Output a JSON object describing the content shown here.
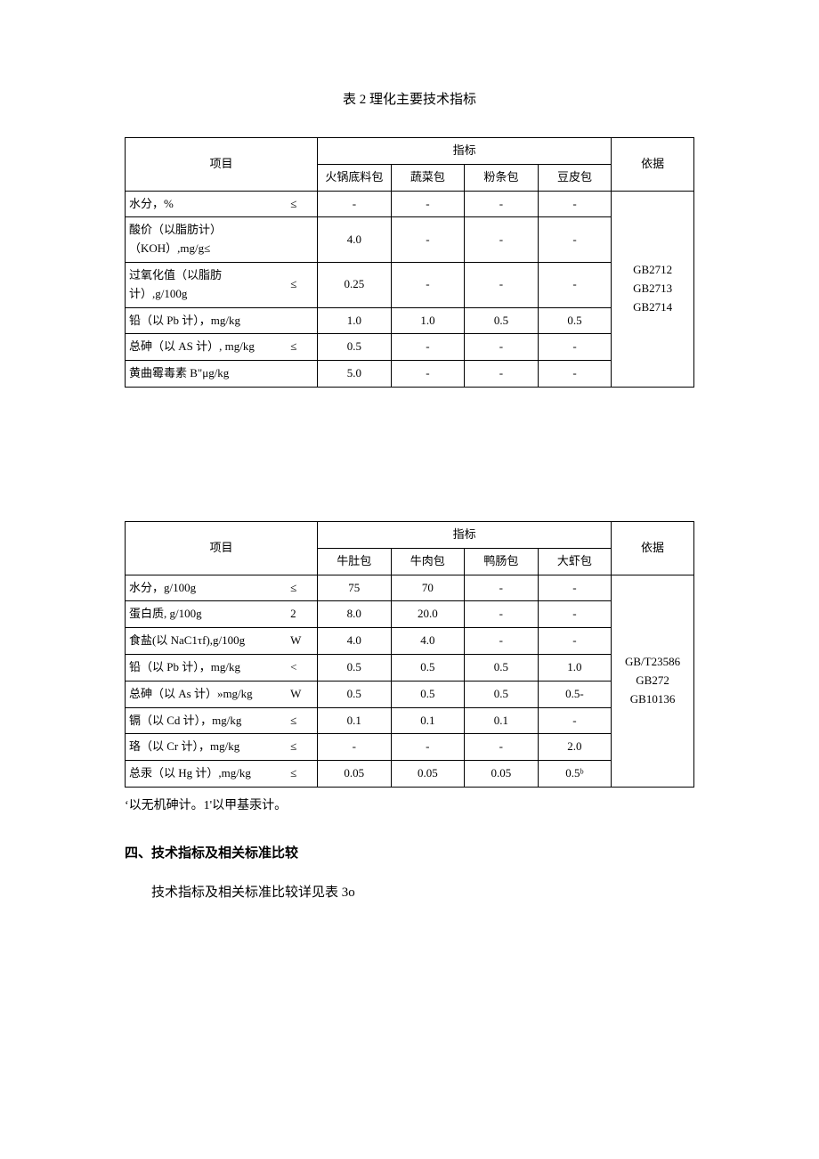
{
  "title": "表 2 理化主要技术指标",
  "table1": {
    "h_item": "项目",
    "h_index": "指标",
    "h_basis": "依据",
    "cols": [
      "火锅底料包",
      "蔬菜包",
      "粉条包",
      "豆皮包"
    ],
    "rows": [
      {
        "name": "水分，%",
        "op": "≤",
        "v": [
          "-",
          "-",
          "-",
          "-"
        ]
      },
      {
        "name": "酸价（以脂肪计）（KOH）,mg/g≤",
        "op": "",
        "v": [
          "4.0",
          "-",
          "-",
          "-"
        ]
      },
      {
        "name": "过氧化值（以脂肪计）,g/100g",
        "op": "≤",
        "v": [
          "0.25",
          "-",
          "-",
          "-"
        ]
      },
      {
        "name": "铅（以 Pb 计），mg/kg",
        "op": "",
        "v": [
          "1.0",
          "1.0",
          "0.5",
          "0.5"
        ]
      },
      {
        "name": "总砷（以 AS 计）, mg/kg",
        "op": "≤",
        "v": [
          "0.5",
          "-",
          "-",
          "-"
        ]
      },
      {
        "name": "黄曲霉毒素 B\"μg/kg",
        "op": "",
        "v": [
          "5.0",
          "-",
          "-",
          "-"
        ]
      }
    ],
    "basis": [
      "GB2712",
      "GB2713",
      "GB2714"
    ]
  },
  "table2": {
    "h_item": "项目",
    "h_index": "指标",
    "h_basis": "依据",
    "cols": [
      "牛肚包",
      "牛肉包",
      "鸭肠包",
      "大虾包"
    ],
    "rows": [
      {
        "name": "水分，g/100g",
        "op": "≤",
        "v": [
          "75",
          "70",
          "-",
          "-"
        ]
      },
      {
        "name": "蛋白质, g/100g",
        "op": "2",
        "v": [
          "8.0",
          "20.0",
          "-",
          "-"
        ]
      },
      {
        "name": "食盐(以 NaC1τf),g/100g",
        "op": "W",
        "v": [
          "4.0",
          "4.0",
          "-",
          "-"
        ]
      },
      {
        "name": "铅（以 Pb 计），mg/kg",
        "op": "<",
        "v": [
          "0.5",
          "0.5",
          "0.5",
          "1.0"
        ]
      },
      {
        "name": "总砷（以 As 计）»mg/kg",
        "op": "W",
        "v": [
          "0.5",
          "0.5",
          "0.5",
          "0.5-"
        ]
      },
      {
        "name": "镉（以 Cd 计），mg/kg",
        "op": "≤",
        "v": [
          "0.1",
          "0.1",
          "0.1",
          "-"
        ]
      },
      {
        "name": "珞（以 Cr 计），mg/kg",
        "op": "≤",
        "v": [
          "-",
          "-",
          "-",
          "2.0"
        ]
      },
      {
        "name": "总汞（以 Hg 计）,mg/kg",
        "op": "≤",
        "v": [
          "0.05",
          "0.05",
          "0.05",
          "0.5ᵇ"
        ]
      }
    ],
    "basis": [
      "GB/T23586",
      "GB272",
      "GB10136"
    ]
  },
  "footnote": "‘以无机砷计。1'以甲基汞计。",
  "section4_head": "四、技术指标及相关标准比较",
  "section4_para": "技术指标及相关标准比较详见表 3o"
}
